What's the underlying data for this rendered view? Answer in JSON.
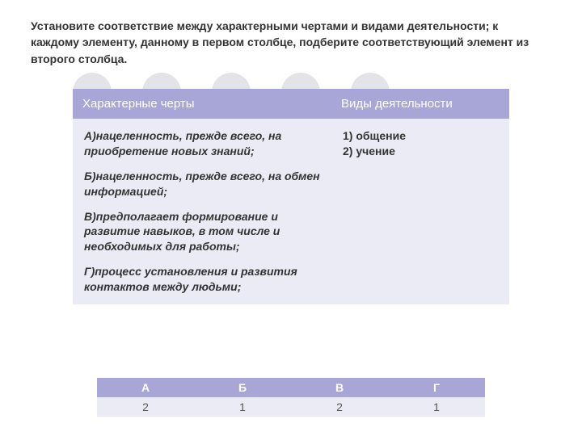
{
  "instruction_text": "Установите соответствие между характерными чертами и видами деятельности; к каждому элементу, данному в первом столбце, подберите соответствующий элемент из второго столбца.",
  "main_table": {
    "header_col1": "Характерные черты",
    "header_col2": "Виды деятельности",
    "left_items": [
      "А)нацеленность, прежде всего, на приобретение новых знаний;",
      "Б)нацеленность, прежде всего, на обмен информацией;",
      "В)предполагает формирование и развитие навыков, в том числе и необходимых для работы;",
      "Г)процесс установления и развития контактов между людьми;"
    ],
    "right_items": [
      "1) общение",
      "2) учение"
    ]
  },
  "answer_table": {
    "headers": [
      "А",
      "Б",
      "В",
      "Г"
    ],
    "values": [
      "2",
      "1",
      "2",
      "1"
    ]
  },
  "colors": {
    "header_bg": "#a7a6d6",
    "cell_bg": "#ebebf5",
    "circle_bg": "#e4e4e8",
    "text_dark": "#333333",
    "page_bg": "#ffffff"
  }
}
